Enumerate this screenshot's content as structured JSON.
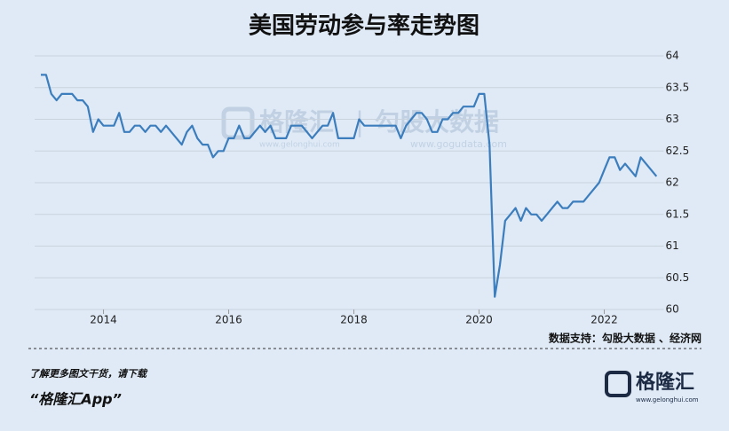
{
  "chart_data": {
    "type": "line",
    "title": "美国劳动参与率走势图",
    "color": "#3b7dbd",
    "x": [
      2013,
      2013.083,
      2013.167,
      2013.25,
      2013.333,
      2013.417,
      2013.5,
      2013.583,
      2013.667,
      2013.75,
      2013.833,
      2013.917,
      2014,
      2014.083,
      2014.167,
      2014.25,
      2014.333,
      2014.417,
      2014.5,
      2014.583,
      2014.667,
      2014.75,
      2014.833,
      2014.917,
      2015,
      2015.083,
      2015.167,
      2015.25,
      2015.333,
      2015.417,
      2015.5,
      2015.583,
      2015.667,
      2015.75,
      2015.833,
      2015.917,
      2016,
      2016.083,
      2016.167,
      2016.25,
      2016.333,
      2016.417,
      2016.5,
      2016.583,
      2016.667,
      2016.75,
      2016.833,
      2016.917,
      2017,
      2017.083,
      2017.167,
      2017.25,
      2017.333,
      2017.417,
      2017.5,
      2017.583,
      2017.667,
      2017.75,
      2017.833,
      2017.917,
      2018,
      2018.083,
      2018.167,
      2018.25,
      2018.333,
      2018.417,
      2018.5,
      2018.583,
      2018.667,
      2018.75,
      2018.833,
      2018.917,
      2019,
      2019.083,
      2019.167,
      2019.25,
      2019.333,
      2019.417,
      2019.5,
      2019.583,
      2019.667,
      2019.75,
      2019.833,
      2019.917,
      2020,
      2020.083,
      2020.167,
      2020.25,
      2020.333,
      2020.417,
      2020.5,
      2020.583,
      2020.667,
      2020.75,
      2020.833,
      2020.917,
      2021,
      2021.083,
      2021.167,
      2021.25,
      2021.333,
      2021.417,
      2021.5,
      2021.583,
      2021.667,
      2021.75,
      2021.833,
      2021.917,
      2022,
      2022.083,
      2022.167,
      2022.25,
      2022.333,
      2022.417,
      2022.5,
      2022.583,
      2022.667,
      2022.75,
      2022.833
    ],
    "values": [
      63.7,
      63.7,
      63.4,
      63.3,
      63.4,
      63.4,
      63.4,
      63.3,
      63.3,
      63.2,
      62.8,
      63.0,
      62.9,
      62.9,
      62.9,
      63.1,
      62.8,
      62.8,
      62.9,
      62.9,
      62.8,
      62.9,
      62.9,
      62.8,
      62.9,
      62.8,
      62.7,
      62.6,
      62.8,
      62.9,
      62.7,
      62.6,
      62.6,
      62.4,
      62.5,
      62.5,
      62.7,
      62.7,
      62.9,
      62.7,
      62.7,
      62.8,
      62.9,
      62.8,
      62.9,
      62.7,
      62.7,
      62.7,
      62.9,
      62.9,
      62.9,
      62.8,
      62.7,
      62.8,
      62.9,
      62.9,
      63.1,
      62.7,
      62.7,
      62.7,
      62.7,
      63.0,
      62.9,
      62.9,
      62.9,
      62.9,
      62.9,
      62.9,
      62.9,
      62.7,
      62.9,
      63.0,
      63.1,
      63.1,
      63.0,
      62.8,
      62.8,
      63.0,
      63.0,
      63.1,
      63.1,
      63.2,
      63.2,
      63.2,
      63.4,
      63.4,
      62.6,
      60.2,
      60.7,
      61.4,
      61.5,
      61.6,
      61.4,
      61.6,
      61.5,
      61.5,
      61.4,
      61.5,
      61.6,
      61.7,
      61.6,
      61.6,
      61.7,
      61.7,
      61.7,
      61.8,
      61.9,
      62.0,
      62.2,
      62.4,
      62.4,
      62.2,
      62.3,
      62.2,
      62.1,
      62.4,
      62.3,
      62.2,
      62.1
    ],
    "xlim": [
      2012.9,
      2022.95
    ],
    "xticks": [
      2014,
      2016,
      2018,
      2020,
      2022
    ],
    "ylim": [
      60,
      64
    ],
    "yticks": [
      64,
      63.5,
      63,
      62.5,
      62,
      61.5,
      61,
      60.5,
      60
    ],
    "grid": true,
    "source": "数据支持：勾股大数据 、经济网"
  },
  "watermark": {
    "brand": "格隆汇",
    "separator": "|",
    "partner": "勾股大数据",
    "brand_url": "www.gelonghui.com",
    "partner_url": "www.gogudata.com"
  },
  "footer": {
    "prompt": "了解更多图文干货，请下载",
    "app": "“格隆汇App”",
    "logo": "格隆汇",
    "logo_url": "www.gelonghui.com"
  }
}
